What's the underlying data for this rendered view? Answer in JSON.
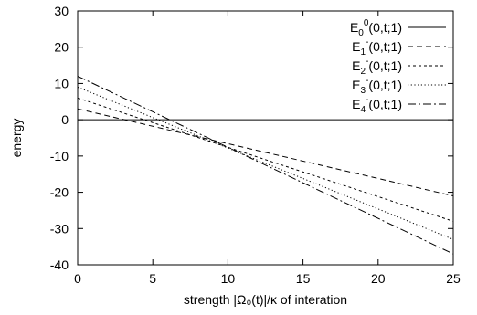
{
  "chart_data": {
    "type": "line",
    "xlabel": "strength |Ω₀(t)|/κ of interation",
    "ylabel": "energy",
    "xlim": [
      0,
      25
    ],
    "ylim": [
      -40,
      30
    ],
    "x_ticks": [
      "0",
      "5",
      "10",
      "15",
      "20",
      "25"
    ],
    "y_ticks": [
      "30",
      "20",
      "10",
      "0",
      "-10",
      "-20",
      "-30",
      "-40"
    ],
    "grid": false,
    "legend_position": "top-right",
    "series": [
      {
        "label_main": "E",
        "label_sub": "0",
        "label_sup": "0",
        "label_rest": "(0,t;1)",
        "dash": "solid",
        "x": [
          0,
          25
        ],
        "y": [
          0,
          0
        ]
      },
      {
        "label_main": "E",
        "label_sub": "1",
        "label_sup": "-",
        "label_rest": "(0,t;1)",
        "dash": "dashed",
        "x": [
          0,
          25
        ],
        "y": [
          3,
          -21
        ]
      },
      {
        "label_main": "E",
        "label_sub": "2",
        "label_sup": "-",
        "label_rest": "(0,t;1)",
        "dash": "short-dashed",
        "x": [
          0,
          25
        ],
        "y": [
          6,
          -28
        ]
      },
      {
        "label_main": "E",
        "label_sub": "3",
        "label_sup": "-",
        "label_rest": "(0,t;1)",
        "dash": "dotted",
        "x": [
          0,
          25
        ],
        "y": [
          9,
          -33
        ]
      },
      {
        "label_main": "E",
        "label_sub": "4",
        "label_sup": "-",
        "label_rest": "(0,t;1)",
        "dash": "dash-dot",
        "x": [
          0,
          25
        ],
        "y": [
          12,
          -37
        ]
      }
    ]
  }
}
